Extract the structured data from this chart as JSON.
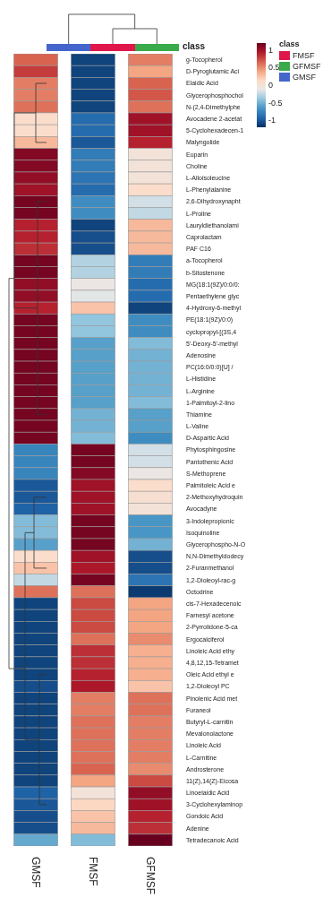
{
  "chart_data": {
    "type": "heatmap",
    "legend_title": "class",
    "annotations": [
      "class"
    ],
    "categories": [
      "GMSF",
      "FMSF",
      "GFMSF"
    ],
    "colors": [
      "#4466cc",
      "#e0174a",
      "#3aaa4a"
    ],
    "y_categories": [
      "g-Tocopherol",
      "D-Pyroglutamic Aci",
      "Elaidic Acid",
      "Glycerophosphochol",
      "N-(2,4-Dimethylphe",
      "Avocadene 2-acetat",
      "5-Cyclohexadecen-1",
      "Malyngolide",
      "Euparin",
      "Choline",
      "L-Alloisoleucine",
      "L-Phenylalanine",
      "2,6-Dihydroxynapht",
      "L-Proline",
      "Lauryldiethanolami",
      "Caprolactam",
      "PAF C16",
      "a-Tocopherol",
      "b-Sitostenone",
      "MG(18:1(9Z)/0:0/0:",
      "Pentaethylene glyc",
      "4-Hydroxy-6-methyl",
      "PE(18:1(9Z)/0:0)",
      "cyclopropyl-[(3S,4",
      "5'-Deoxy-5'-methyl",
      "Adenosine",
      "PC(16:0/0:0)[U] /",
      "L-Histidine",
      "L-Arginine",
      "1-Palmitoyl-2-lino",
      "Thiamine",
      "L-Valine",
      "D-Aspartic Acid",
      "Phytosphingosine",
      "Pantothenic Acid",
      "S-Methoprene",
      "Palmitoleic Acid e",
      "2-Methoxyhydroquin",
      "Avocadyne",
      "3-Indolepropionic",
      "Isoquinoline",
      "Glycerophospho-N-O",
      "N,N-Dimethyldodecy",
      "2-Furanmethanol",
      "1,2-Dioleoyl-rac-g",
      "Octodrine",
      "cis-7-Hexadecenoic",
      "Farnesyl acetone",
      "2-Pyrrolidone-5-ca",
      "Ergocalciferol",
      "Linoleic Acid ethy",
      "4,8,12,15-Tetramet",
      "Oleic Acid ethyl e",
      "1,2-Dioleoyl PC",
      "Pinolenic Acid met",
      "Furaneol",
      "Butyryl-L-carnitin",
      "Mevalonolactone",
      "Linoleic Acid",
      "L-Carnitine",
      "Androsterone",
      "11(Z),14(Z)-Eicosa",
      "Linoelaidic Acid",
      "3-Cyclohexylaminop",
      "Gondoic Acid",
      "Adenine",
      "Tetradecanoic Acid"
    ],
    "cells": [
      [
        0.65,
        -1.1,
        0.55
      ],
      [
        0.8,
        -1.1,
        0.4
      ],
      [
        0.55,
        -1.1,
        0.65
      ],
      [
        0.55,
        -1.1,
        0.7
      ],
      [
        0.6,
        -1.1,
        0.6
      ],
      [
        0.1,
        -0.9,
        1.0
      ],
      [
        0.1,
        -0.9,
        1.0
      ],
      [
        0.3,
        -1.0,
        0.9
      ],
      [
        1.1,
        -0.8,
        0.0
      ],
      [
        1.1,
        -0.8,
        0.0
      ],
      [
        1.05,
        -0.85,
        0.0
      ],
      [
        1.0,
        -0.9,
        0.1
      ],
      [
        1.15,
        -0.7,
        -0.2
      ],
      [
        1.15,
        -0.7,
        -0.25
      ],
      [
        0.9,
        -1.1,
        0.3
      ],
      [
        0.9,
        -1.05,
        0.3
      ],
      [
        0.85,
        -1.05,
        0.3
      ],
      [
        1.15,
        -0.3,
        -0.8
      ],
      [
        1.15,
        -0.3,
        -0.8
      ],
      [
        1.05,
        -0.1,
        -0.9
      ],
      [
        1.05,
        -0.15,
        -0.9
      ],
      [
        0.9,
        0.25,
        -1.1
      ],
      [
        1.15,
        -0.4,
        -0.7
      ],
      [
        1.15,
        -0.4,
        -0.7
      ],
      [
        1.15,
        -0.6,
        -0.45
      ],
      [
        1.15,
        -0.6,
        -0.5
      ],
      [
        1.15,
        -0.6,
        -0.5
      ],
      [
        1.15,
        -0.6,
        -0.5
      ],
      [
        1.15,
        -0.6,
        -0.5
      ],
      [
        1.15,
        -0.6,
        -0.45
      ],
      [
        1.15,
        -0.5,
        -0.6
      ],
      [
        1.15,
        -0.5,
        -0.6
      ],
      [
        1.15,
        -0.45,
        -0.7
      ],
      [
        -0.75,
        1.15,
        -0.2
      ],
      [
        -0.75,
        1.15,
        -0.2
      ],
      [
        -0.75,
        1.1,
        -0.1
      ],
      [
        -1.0,
        1.0,
        0.1
      ],
      [
        -1.0,
        1.0,
        0.05
      ],
      [
        -0.95,
        1.0,
        0.0
      ],
      [
        -0.45,
        1.15,
        -0.65
      ],
      [
        -0.45,
        1.15,
        -0.65
      ],
      [
        -0.6,
        1.15,
        -0.5
      ],
      [
        0.1,
        1.0,
        -1.05
      ],
      [
        0.25,
        0.95,
        -1.05
      ],
      [
        -0.25,
        1.15,
        -0.85
      ],
      [
        0.6,
        0.6,
        -1.15
      ],
      [
        -1.1,
        0.75,
        0.4
      ],
      [
        -1.1,
        0.75,
        0.4
      ],
      [
        -1.1,
        0.75,
        0.4
      ],
      [
        -1.1,
        0.6,
        0.5
      ],
      [
        -1.1,
        0.85,
        0.35
      ],
      [
        -1.1,
        0.85,
        0.35
      ],
      [
        -1.1,
        0.9,
        0.35
      ],
      [
        -1.05,
        0.95,
        0.25
      ],
      [
        -1.1,
        0.55,
        0.6
      ],
      [
        -1.1,
        0.55,
        0.6
      ],
      [
        -1.1,
        0.6,
        0.55
      ],
      [
        -1.1,
        0.6,
        0.55
      ],
      [
        -1.1,
        0.6,
        0.55
      ],
      [
        -1.1,
        0.6,
        0.55
      ],
      [
        -1.1,
        0.65,
        0.5
      ],
      [
        -1.1,
        0.4,
        0.75
      ],
      [
        -0.95,
        0.0,
        1.05
      ],
      [
        -1.0,
        0.15,
        1.0
      ],
      [
        -1.05,
        0.25,
        0.9
      ],
      [
        -1.05,
        0.3,
        0.85
      ],
      [
        -0.55,
        -0.45,
        1.2
      ]
    ],
    "clim": [
      -1.2,
      1.2
    ],
    "cticks": [
      -1,
      -0.5,
      0,
      0.5,
      1
    ]
  }
}
